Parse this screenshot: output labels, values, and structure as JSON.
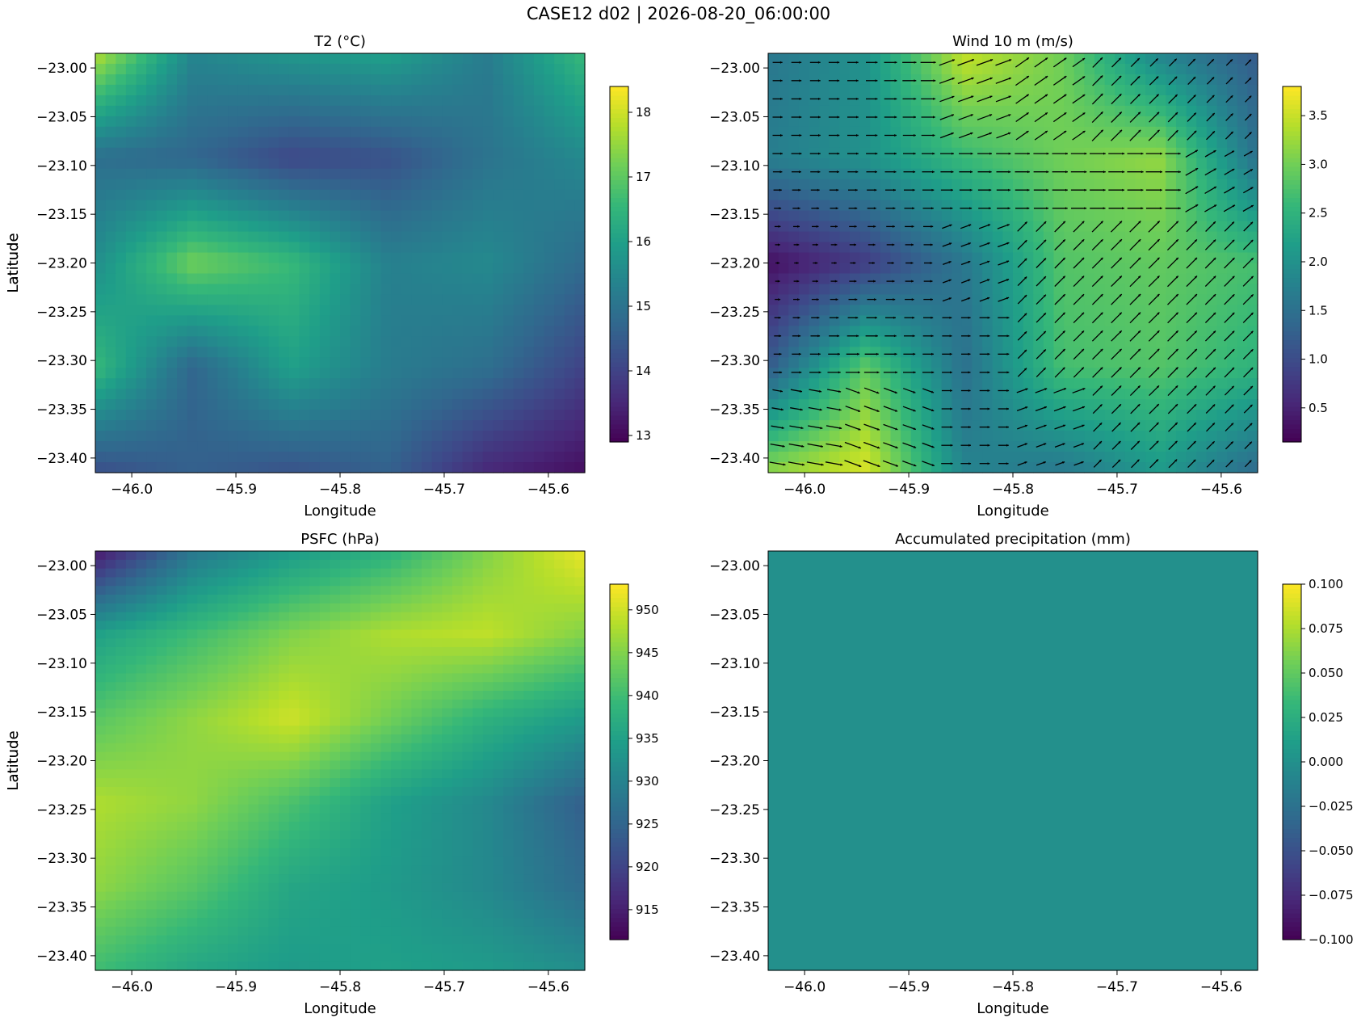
{
  "figure": {
    "title": "CASE12 d02 | 2026-08-20_06:00:00"
  },
  "colormap": [
    "#440154",
    "#482878",
    "#3e4989",
    "#31688e",
    "#26828e",
    "#1f9e89",
    "#35b779",
    "#6ece58",
    "#b5de2b",
    "#fde725"
  ],
  "quiver_color": "#000000",
  "chart_data": [
    {
      "type": "heatmap",
      "title": "T2 (°C)",
      "xlabel": "Longitude",
      "ylabel": "Latitude",
      "xlim": [
        -46.035,
        -45.565
      ],
      "ylim": [
        -23.415,
        -22.985
      ],
      "xticks": [
        -46.0,
        -45.9,
        -45.8,
        -45.7,
        -45.6
      ],
      "xtick_labels": [
        "−46.0",
        "−45.9",
        "−45.8",
        "−45.7",
        "−45.6"
      ],
      "yticks": [
        -23.0,
        -23.05,
        -23.1,
        -23.15,
        -23.2,
        -23.25,
        -23.3,
        -23.35,
        -23.4
      ],
      "ytick_labels": [
        "−23.00",
        "−23.05",
        "−23.10",
        "−23.15",
        "−23.20",
        "−23.25",
        "−23.30",
        "−23.35",
        "−23.40"
      ],
      "value_range": [
        12.9,
        18.4
      ],
      "colorbar_ticks": [
        13,
        14,
        15,
        16,
        17,
        18
      ],
      "colorbar_tick_labels": [
        "13",
        "14",
        "15",
        "16",
        "17",
        "18"
      ],
      "grid_shape": [
        5,
        6
      ],
      "grid": [
        [
          17.8,
          15.4,
          15.8,
          16.0,
          15.2,
          16.6
        ],
        [
          14.9,
          14.7,
          14.1,
          14.3,
          15.0,
          15.5
        ],
        [
          15.6,
          17.2,
          16.6,
          15.3,
          15.5,
          14.8
        ],
        [
          16.6,
          14.7,
          16.0,
          15.2,
          14.9,
          14.0
        ],
        [
          14.2,
          14.6,
          14.3,
          14.6,
          13.5,
          13.1
        ]
      ]
    },
    {
      "type": "heatmap",
      "title": "Wind 10 m (m/s)",
      "xlabel": "Longitude",
      "ylabel": "Latitude",
      "xlim": [
        -46.035,
        -45.565
      ],
      "ylim": [
        -23.415,
        -22.985
      ],
      "xticks": [
        -46.0,
        -45.9,
        -45.8,
        -45.7,
        -45.6
      ],
      "xtick_labels": [
        "−46.0",
        "−45.9",
        "−45.8",
        "−45.7",
        "−45.6"
      ],
      "yticks": [
        -23.0,
        -23.05,
        -23.1,
        -23.15,
        -23.2,
        -23.25,
        -23.3,
        -23.35,
        -23.4
      ],
      "ytick_labels": [
        "−23.00",
        "−23.05",
        "−23.10",
        "−23.15",
        "−23.20",
        "−23.25",
        "−23.30",
        "−23.35",
        "−23.40"
      ],
      "value_range": [
        0.15,
        3.8
      ],
      "colorbar_ticks": [
        0.5,
        1.0,
        1.5,
        2.0,
        2.5,
        3.0,
        3.5
      ],
      "colorbar_tick_labels": [
        "0.5",
        "1.0",
        "1.5",
        "2.0",
        "2.5",
        "3.0",
        "3.5"
      ],
      "grid_shape": [
        5,
        6
      ],
      "grid": [
        [
          1.6,
          2.0,
          3.5,
          3.0,
          1.8,
          1.2
        ],
        [
          1.7,
          2.0,
          2.6,
          3.0,
          3.2,
          1.5
        ],
        [
          0.3,
          0.8,
          1.6,
          2.8,
          2.9,
          2.7
        ],
        [
          1.2,
          2.9,
          1.5,
          2.7,
          2.8,
          2.5
        ],
        [
          3.2,
          3.6,
          1.8,
          1.6,
          2.1,
          1.4
        ]
      ],
      "wind_direction_deg": [
        [
          270,
          270,
          250,
          235,
          225,
          225
        ],
        [
          270,
          270,
          270,
          270,
          270,
          240
        ],
        [
          270,
          270,
          250,
          225,
          225,
          225
        ],
        [
          270,
          270,
          270,
          225,
          225,
          225
        ],
        [
          280,
          290,
          270,
          250,
          225,
          225
        ]
      ]
    },
    {
      "type": "heatmap",
      "title": "PSFC (hPa)",
      "xlabel": "Longitude",
      "ylabel": "Latitude",
      "xlim": [
        -46.035,
        -45.565
      ],
      "ylim": [
        -23.415,
        -22.985
      ],
      "xticks": [
        -46.0,
        -45.9,
        -45.8,
        -45.7,
        -45.6
      ],
      "xtick_labels": [
        "−46.0",
        "−45.9",
        "−45.8",
        "−45.7",
        "−45.6"
      ],
      "yticks": [
        -23.0,
        -23.05,
        -23.1,
        -23.15,
        -23.2,
        -23.25,
        -23.3,
        -23.35,
        -23.4
      ],
      "ytick_labels": [
        "−23.00",
        "−23.05",
        "−23.10",
        "−23.15",
        "−23.20",
        "−23.25",
        "−23.30",
        "−23.35",
        "−23.40"
      ],
      "value_range": [
        911.5,
        953.0
      ],
      "colorbar_ticks": [
        915,
        920,
        925,
        930,
        935,
        940,
        945,
        950
      ],
      "colorbar_tick_labels": [
        "915",
        "920",
        "925",
        "930",
        "935",
        "940",
        "945",
        "950"
      ],
      "grid_shape": [
        6,
        6
      ],
      "grid": [
        [
          914,
          928,
          934,
          938,
          945,
          952
        ],
        [
          935,
          940,
          945,
          948,
          949,
          945
        ],
        [
          942,
          946,
          950,
          944,
          938,
          934
        ],
        [
          948,
          946,
          941,
          935,
          931,
          924
        ],
        [
          946,
          942,
          936,
          934,
          931,
          926
        ],
        [
          940,
          936,
          934,
          935,
          934,
          932
        ]
      ]
    },
    {
      "type": "heatmap",
      "title": "Accumulated precipitation (mm)",
      "xlabel": "Longitude",
      "ylabel": "Latitude",
      "xlim": [
        -46.035,
        -45.565
      ],
      "ylim": [
        -23.415,
        -22.985
      ],
      "xticks": [
        -46.0,
        -45.9,
        -45.8,
        -45.7,
        -45.6
      ],
      "xtick_labels": [
        "−46.0",
        "−45.9",
        "−45.8",
        "−45.7",
        "−45.6"
      ],
      "yticks": [
        -23.0,
        -23.05,
        -23.1,
        -23.15,
        -23.2,
        -23.25,
        -23.3,
        -23.35,
        -23.4
      ],
      "ytick_labels": [
        "−23.00",
        "−23.05",
        "−23.10",
        "−23.15",
        "−23.20",
        "−23.25",
        "−23.30",
        "−23.35",
        "−23.40"
      ],
      "value_range": [
        -0.1,
        0.1
      ],
      "colorbar_ticks": [
        -0.1,
        -0.075,
        -0.05,
        -0.025,
        0.0,
        0.025,
        0.05,
        0.075,
        0.1
      ],
      "colorbar_tick_labels": [
        "−0.100",
        "−0.075",
        "−0.050",
        "−0.025",
        "0.000",
        "0.025",
        "0.050",
        "0.075",
        "0.100"
      ],
      "grid_shape": [
        1,
        1
      ],
      "grid": [
        [
          0.0
        ]
      ]
    }
  ]
}
